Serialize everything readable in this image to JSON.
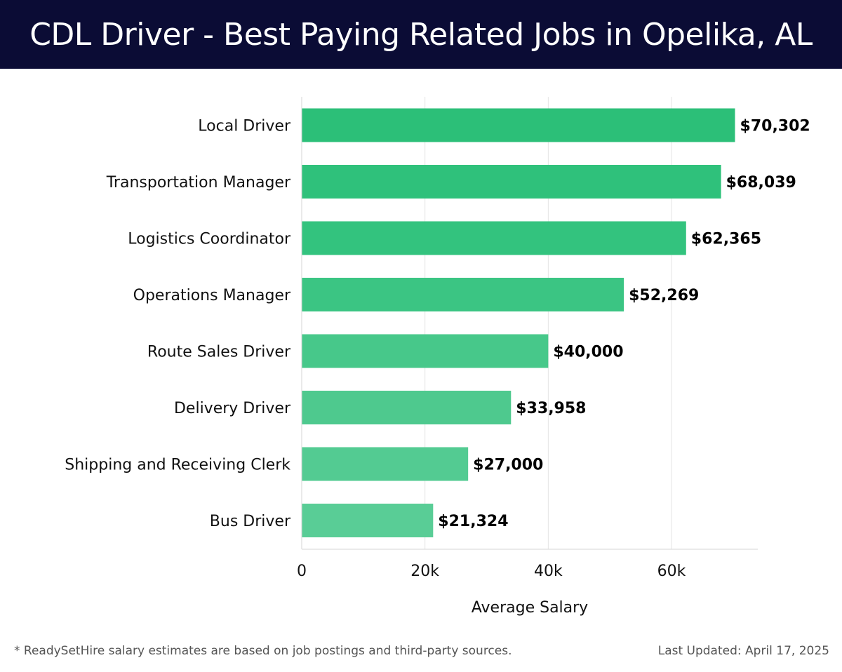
{
  "header": {
    "title": "CDL Driver - Best Paying Related Jobs in Opelika, AL"
  },
  "chart_data": {
    "type": "bar",
    "orientation": "horizontal",
    "title": "CDL Driver - Best Paying Related Jobs in Opelika, AL",
    "xlabel": "Average Salary",
    "ylabel": "",
    "xlim": [
      0,
      74000
    ],
    "x_ticks": [
      0,
      20000,
      40000,
      60000
    ],
    "x_tick_labels": [
      "0",
      "20k",
      "40k",
      "60k"
    ],
    "grid": true,
    "categories": [
      "Local Driver",
      "Transportation Manager",
      "Logistics Coordinator",
      "Operations Manager",
      "Route Sales Driver",
      "Delivery Driver",
      "Shipping and Receiving Clerk",
      "Bus Driver"
    ],
    "values": [
      70302,
      68039,
      62365,
      52269,
      40000,
      33958,
      27000,
      21324
    ],
    "value_labels": [
      "$70,302",
      "$68,039",
      "$62,365",
      "$52,269",
      "$40,000",
      "$33,958",
      "$27,000",
      "$21,324"
    ],
    "bar_colors": [
      "#2cbf78",
      "#2fc17b",
      "#33c37e",
      "#3bc583",
      "#47c88a",
      "#4ec98e",
      "#53cb92",
      "#59cd96"
    ]
  },
  "footer": {
    "note": "* ReadySetHire salary estimates are based on job postings and third-party sources.",
    "updated": "Last Updated: April 17, 2025"
  }
}
